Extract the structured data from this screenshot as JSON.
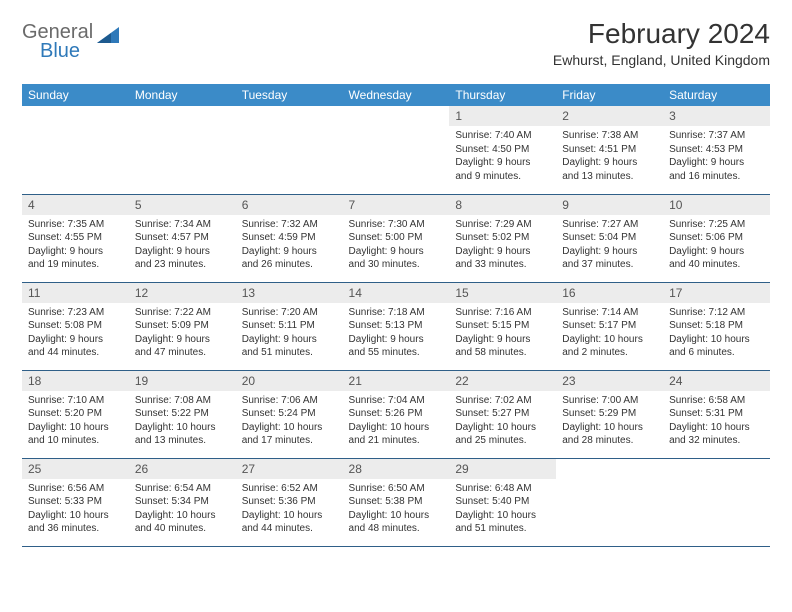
{
  "logo": {
    "text1": "General",
    "text2": "Blue"
  },
  "title": "February 2024",
  "location": "Ewhurst, England, United Kingdom",
  "colors": {
    "header_bg": "#3b8bc8",
    "header_text": "#ffffff",
    "row_border": "#2f5f88",
    "daynum_bg": "#ececec",
    "logo_gray": "#6a6a6a",
    "logo_blue": "#2f79b9"
  },
  "daynames": [
    "Sunday",
    "Monday",
    "Tuesday",
    "Wednesday",
    "Thursday",
    "Friday",
    "Saturday"
  ],
  "weeks": [
    [
      null,
      null,
      null,
      null,
      {
        "n": "1",
        "sr": "7:40 AM",
        "ss": "4:50 PM",
        "d1": "Daylight: 9 hours",
        "d2": "and 9 minutes."
      },
      {
        "n": "2",
        "sr": "7:38 AM",
        "ss": "4:51 PM",
        "d1": "Daylight: 9 hours",
        "d2": "and 13 minutes."
      },
      {
        "n": "3",
        "sr": "7:37 AM",
        "ss": "4:53 PM",
        "d1": "Daylight: 9 hours",
        "d2": "and 16 minutes."
      }
    ],
    [
      {
        "n": "4",
        "sr": "7:35 AM",
        "ss": "4:55 PM",
        "d1": "Daylight: 9 hours",
        "d2": "and 19 minutes."
      },
      {
        "n": "5",
        "sr": "7:34 AM",
        "ss": "4:57 PM",
        "d1": "Daylight: 9 hours",
        "d2": "and 23 minutes."
      },
      {
        "n": "6",
        "sr": "7:32 AM",
        "ss": "4:59 PM",
        "d1": "Daylight: 9 hours",
        "d2": "and 26 minutes."
      },
      {
        "n": "7",
        "sr": "7:30 AM",
        "ss": "5:00 PM",
        "d1": "Daylight: 9 hours",
        "d2": "and 30 minutes."
      },
      {
        "n": "8",
        "sr": "7:29 AM",
        "ss": "5:02 PM",
        "d1": "Daylight: 9 hours",
        "d2": "and 33 minutes."
      },
      {
        "n": "9",
        "sr": "7:27 AM",
        "ss": "5:04 PM",
        "d1": "Daylight: 9 hours",
        "d2": "and 37 minutes."
      },
      {
        "n": "10",
        "sr": "7:25 AM",
        "ss": "5:06 PM",
        "d1": "Daylight: 9 hours",
        "d2": "and 40 minutes."
      }
    ],
    [
      {
        "n": "11",
        "sr": "7:23 AM",
        "ss": "5:08 PM",
        "d1": "Daylight: 9 hours",
        "d2": "and 44 minutes."
      },
      {
        "n": "12",
        "sr": "7:22 AM",
        "ss": "5:09 PM",
        "d1": "Daylight: 9 hours",
        "d2": "and 47 minutes."
      },
      {
        "n": "13",
        "sr": "7:20 AM",
        "ss": "5:11 PM",
        "d1": "Daylight: 9 hours",
        "d2": "and 51 minutes."
      },
      {
        "n": "14",
        "sr": "7:18 AM",
        "ss": "5:13 PM",
        "d1": "Daylight: 9 hours",
        "d2": "and 55 minutes."
      },
      {
        "n": "15",
        "sr": "7:16 AM",
        "ss": "5:15 PM",
        "d1": "Daylight: 9 hours",
        "d2": "and 58 minutes."
      },
      {
        "n": "16",
        "sr": "7:14 AM",
        "ss": "5:17 PM",
        "d1": "Daylight: 10 hours",
        "d2": "and 2 minutes."
      },
      {
        "n": "17",
        "sr": "7:12 AM",
        "ss": "5:18 PM",
        "d1": "Daylight: 10 hours",
        "d2": "and 6 minutes."
      }
    ],
    [
      {
        "n": "18",
        "sr": "7:10 AM",
        "ss": "5:20 PM",
        "d1": "Daylight: 10 hours",
        "d2": "and 10 minutes."
      },
      {
        "n": "19",
        "sr": "7:08 AM",
        "ss": "5:22 PM",
        "d1": "Daylight: 10 hours",
        "d2": "and 13 minutes."
      },
      {
        "n": "20",
        "sr": "7:06 AM",
        "ss": "5:24 PM",
        "d1": "Daylight: 10 hours",
        "d2": "and 17 minutes."
      },
      {
        "n": "21",
        "sr": "7:04 AM",
        "ss": "5:26 PM",
        "d1": "Daylight: 10 hours",
        "d2": "and 21 minutes."
      },
      {
        "n": "22",
        "sr": "7:02 AM",
        "ss": "5:27 PM",
        "d1": "Daylight: 10 hours",
        "d2": "and 25 minutes."
      },
      {
        "n": "23",
        "sr": "7:00 AM",
        "ss": "5:29 PM",
        "d1": "Daylight: 10 hours",
        "d2": "and 28 minutes."
      },
      {
        "n": "24",
        "sr": "6:58 AM",
        "ss": "5:31 PM",
        "d1": "Daylight: 10 hours",
        "d2": "and 32 minutes."
      }
    ],
    [
      {
        "n": "25",
        "sr": "6:56 AM",
        "ss": "5:33 PM",
        "d1": "Daylight: 10 hours",
        "d2": "and 36 minutes."
      },
      {
        "n": "26",
        "sr": "6:54 AM",
        "ss": "5:34 PM",
        "d1": "Daylight: 10 hours",
        "d2": "and 40 minutes."
      },
      {
        "n": "27",
        "sr": "6:52 AM",
        "ss": "5:36 PM",
        "d1": "Daylight: 10 hours",
        "d2": "and 44 minutes."
      },
      {
        "n": "28",
        "sr": "6:50 AM",
        "ss": "5:38 PM",
        "d1": "Daylight: 10 hours",
        "d2": "and 48 minutes."
      },
      {
        "n": "29",
        "sr": "6:48 AM",
        "ss": "5:40 PM",
        "d1": "Daylight: 10 hours",
        "d2": "and 51 minutes."
      },
      null,
      null
    ]
  ]
}
